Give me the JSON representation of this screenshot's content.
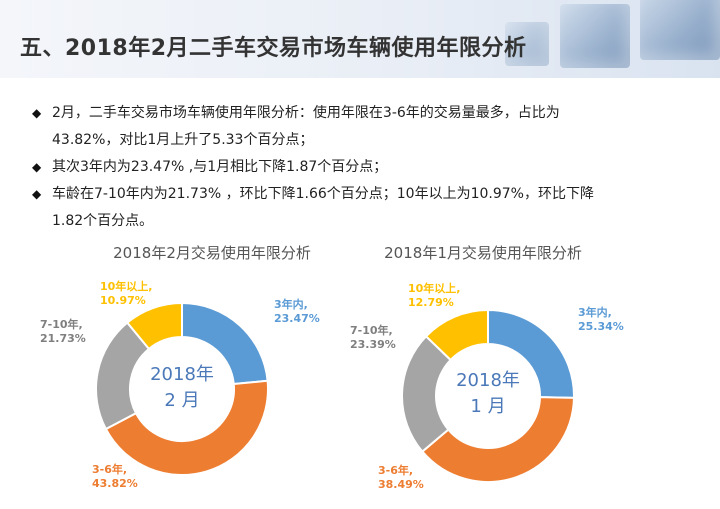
{
  "title": "五、2018年2月二手车交易市场车辆使用年限分析",
  "bullets": [
    {
      "lines": [
        "2月，二手车交易市场车辆使用年限分析：使用年限在3-6年的交易量最多，占比为",
        "43.82%，对比1月上升了5.33个百分点；"
      ]
    },
    {
      "lines": [
        "其次3年内为23.47% ,与1月相比下降1.87个百分点；"
      ]
    },
    {
      "lines": [
        "车龄在7-10年内为21.73% ，环比下降1.66个百分点；10年以上为10.97%，环比下降",
        "1.82个百分点。"
      ]
    }
  ],
  "colors": {
    "within3": "#5b9bd5",
    "y3to6": "#ed7d31",
    "y7to10": "#a5a5a5",
    "over10": "#ffc000"
  },
  "chart_data": [
    {
      "type": "pie",
      "variant": "donut",
      "title": "2018年2月交易使用年限分析",
      "center_text": [
        "2018年",
        "2 月"
      ],
      "slices": [
        {
          "label": "3年内",
          "value": 23.47,
          "value_label": "23.47%"
        },
        {
          "label": "3-6年",
          "value": 43.82,
          "value_label": "43.82%"
        },
        {
          "label": "7-10年",
          "value": 21.73,
          "value_label": "21.73%"
        },
        {
          "label": "10年以上",
          "value": 10.97,
          "value_label": "10.97%"
        }
      ]
    },
    {
      "type": "pie",
      "variant": "donut",
      "title": "2018年1月交易使用年限分析",
      "center_text": [
        "2018年",
        "1 月"
      ],
      "slices": [
        {
          "label": "3年内",
          "value": 25.34,
          "value_label": "25.34%"
        },
        {
          "label": "3-6年",
          "value": 38.49,
          "value_label": "38.49%"
        },
        {
          "label": "7-10年",
          "value": 23.39,
          "value_label": "23.39%"
        },
        {
          "label": "10年以上",
          "value": 12.79,
          "value_label": "12.79%"
        }
      ]
    }
  ]
}
